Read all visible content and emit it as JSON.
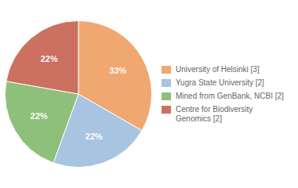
{
  "chart_data": {
    "type": "pie",
    "categories": [
      "University of Helsinki [3]",
      "Yugra State University [2]",
      "Mined from GenBank, NCBI [2]",
      "Centre for Biodiversity\nGenomics [2]"
    ],
    "values": [
      33,
      22,
      22,
      22
    ],
    "value_labels": [
      "33%",
      "22%",
      "22%",
      "22%"
    ],
    "colors": [
      "#f0a870",
      "#a8c4e0",
      "#8ec07c",
      "#cc7060"
    ],
    "data_labels": true,
    "legend": "right"
  }
}
